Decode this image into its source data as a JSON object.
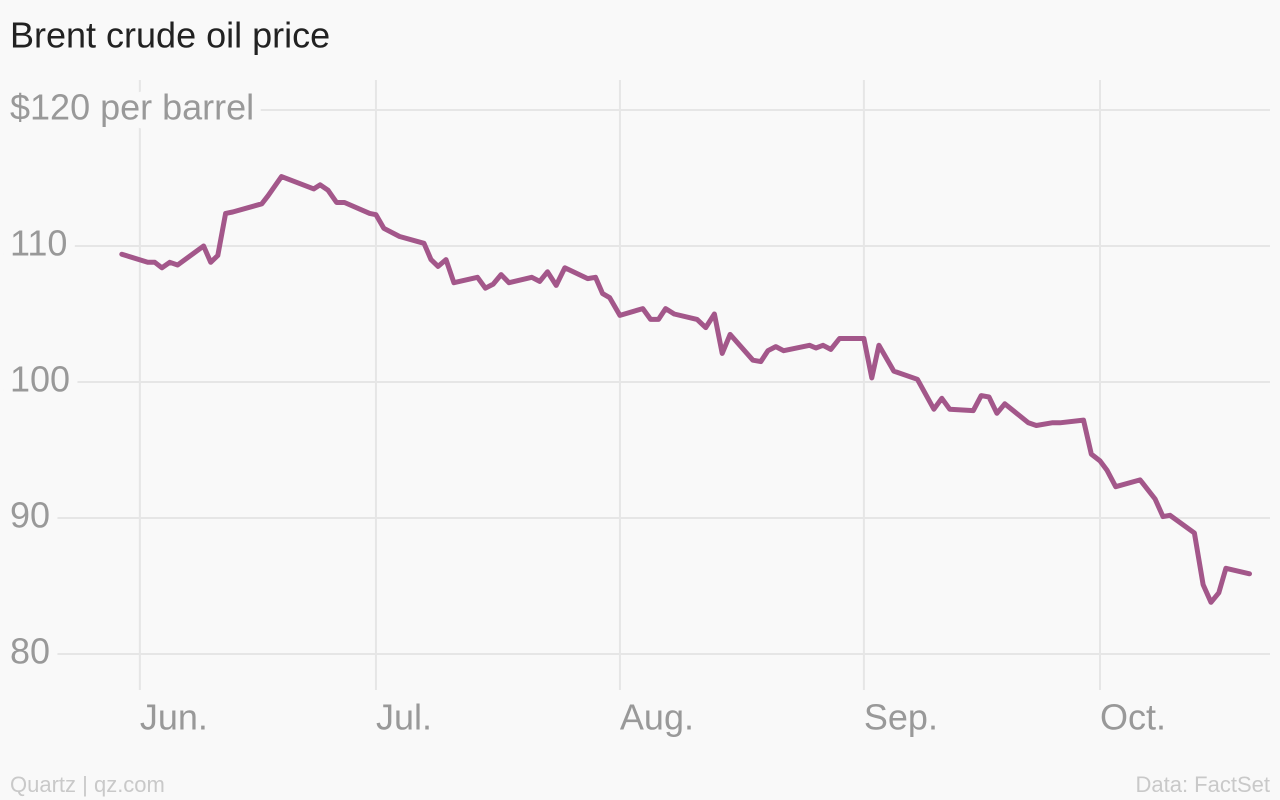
{
  "chart_data": {
    "type": "line",
    "title": "Brent crude oil price",
    "credit": "Quartz | qz.com",
    "source": "Data: FactSet",
    "grid": true,
    "xlim": [
      -16.5,
      143.6
    ],
    "xticks": [
      {
        "value": 0,
        "label": "Jun."
      },
      {
        "value": 30,
        "label": "Jul."
      },
      {
        "value": 61,
        "label": "Aug."
      },
      {
        "value": 92,
        "label": "Sep."
      },
      {
        "value": 122,
        "label": "Oct."
      }
    ],
    "ylim": [
      80,
      120
    ],
    "yticks": [
      80,
      90,
      100,
      110,
      {
        "value": 120,
        "label": "$120 per barrel"
      }
    ],
    "series": [
      {
        "color": "#a3578a",
        "x": [
          -2.3,
          1.0,
          1.9,
          2.8,
          3.8,
          4.8,
          8.1,
          9.0,
          9.9,
          10.9,
          11.8,
          15.5,
          16.3,
          18.0,
          22.1,
          22.9,
          23.9,
          25.0,
          26.0,
          29.2,
          30.0,
          31.0,
          33.0,
          36.1,
          37.0,
          37.9,
          38.9,
          39.9,
          42.9,
          43.9,
          44.9,
          45.9,
          46.9,
          49.8,
          50.8,
          51.8,
          52.9,
          54.0,
          56.9,
          57.9,
          58.8,
          59.7,
          61.0,
          63.9,
          64.9,
          65.9,
          66.8,
          67.9,
          70.8,
          71.9,
          73.0,
          74.0,
          75.0,
          77.9,
          78.9,
          79.8,
          80.8,
          81.8,
          85.1,
          85.9,
          86.8,
          87.8,
          88.9,
          92.0,
          93.0,
          93.9,
          95.8,
          98.8,
          100.9,
          101.9,
          102.9,
          105.9,
          106.9,
          107.9,
          108.9,
          109.9,
          112.9,
          113.9,
          115.9,
          116.9,
          119.9,
          120.9,
          122.0,
          122.9,
          124.0,
          127.1,
          129.0,
          130.0,
          130.9,
          134.0,
          135.1,
          136.1,
          137.1,
          138.0,
          141.0
        ],
        "values": [
          109.4,
          108.8,
          108.8,
          108.4,
          108.8,
          108.6,
          110.0,
          108.8,
          109.3,
          112.4,
          112.5,
          113.1,
          113.7,
          115.1,
          114.2,
          114.5,
          114.1,
          113.2,
          113.2,
          112.4,
          112.3,
          111.3,
          110.7,
          110.2,
          109.0,
          108.5,
          109.0,
          107.3,
          107.7,
          106.9,
          107.2,
          107.9,
          107.3,
          107.7,
          107.4,
          108.1,
          107.1,
          108.4,
          107.6,
          107.7,
          106.5,
          106.2,
          104.9,
          105.4,
          104.6,
          104.6,
          105.4,
          105.0,
          104.6,
          104.0,
          105.0,
          102.1,
          103.5,
          101.6,
          101.5,
          102.3,
          102.6,
          102.3,
          102.7,
          102.5,
          102.7,
          102.4,
          103.2,
          103.2,
          100.3,
          102.7,
          100.8,
          100.2,
          98.0,
          98.8,
          98.0,
          97.9,
          99.0,
          98.9,
          97.7,
          98.4,
          97.0,
          96.8,
          97.0,
          97.0,
          97.2,
          94.7,
          94.2,
          93.5,
          92.3,
          92.8,
          91.4,
          90.1,
          90.2,
          88.9,
          85.1,
          83.8,
          84.5,
          86.3,
          85.9
        ]
      }
    ]
  }
}
